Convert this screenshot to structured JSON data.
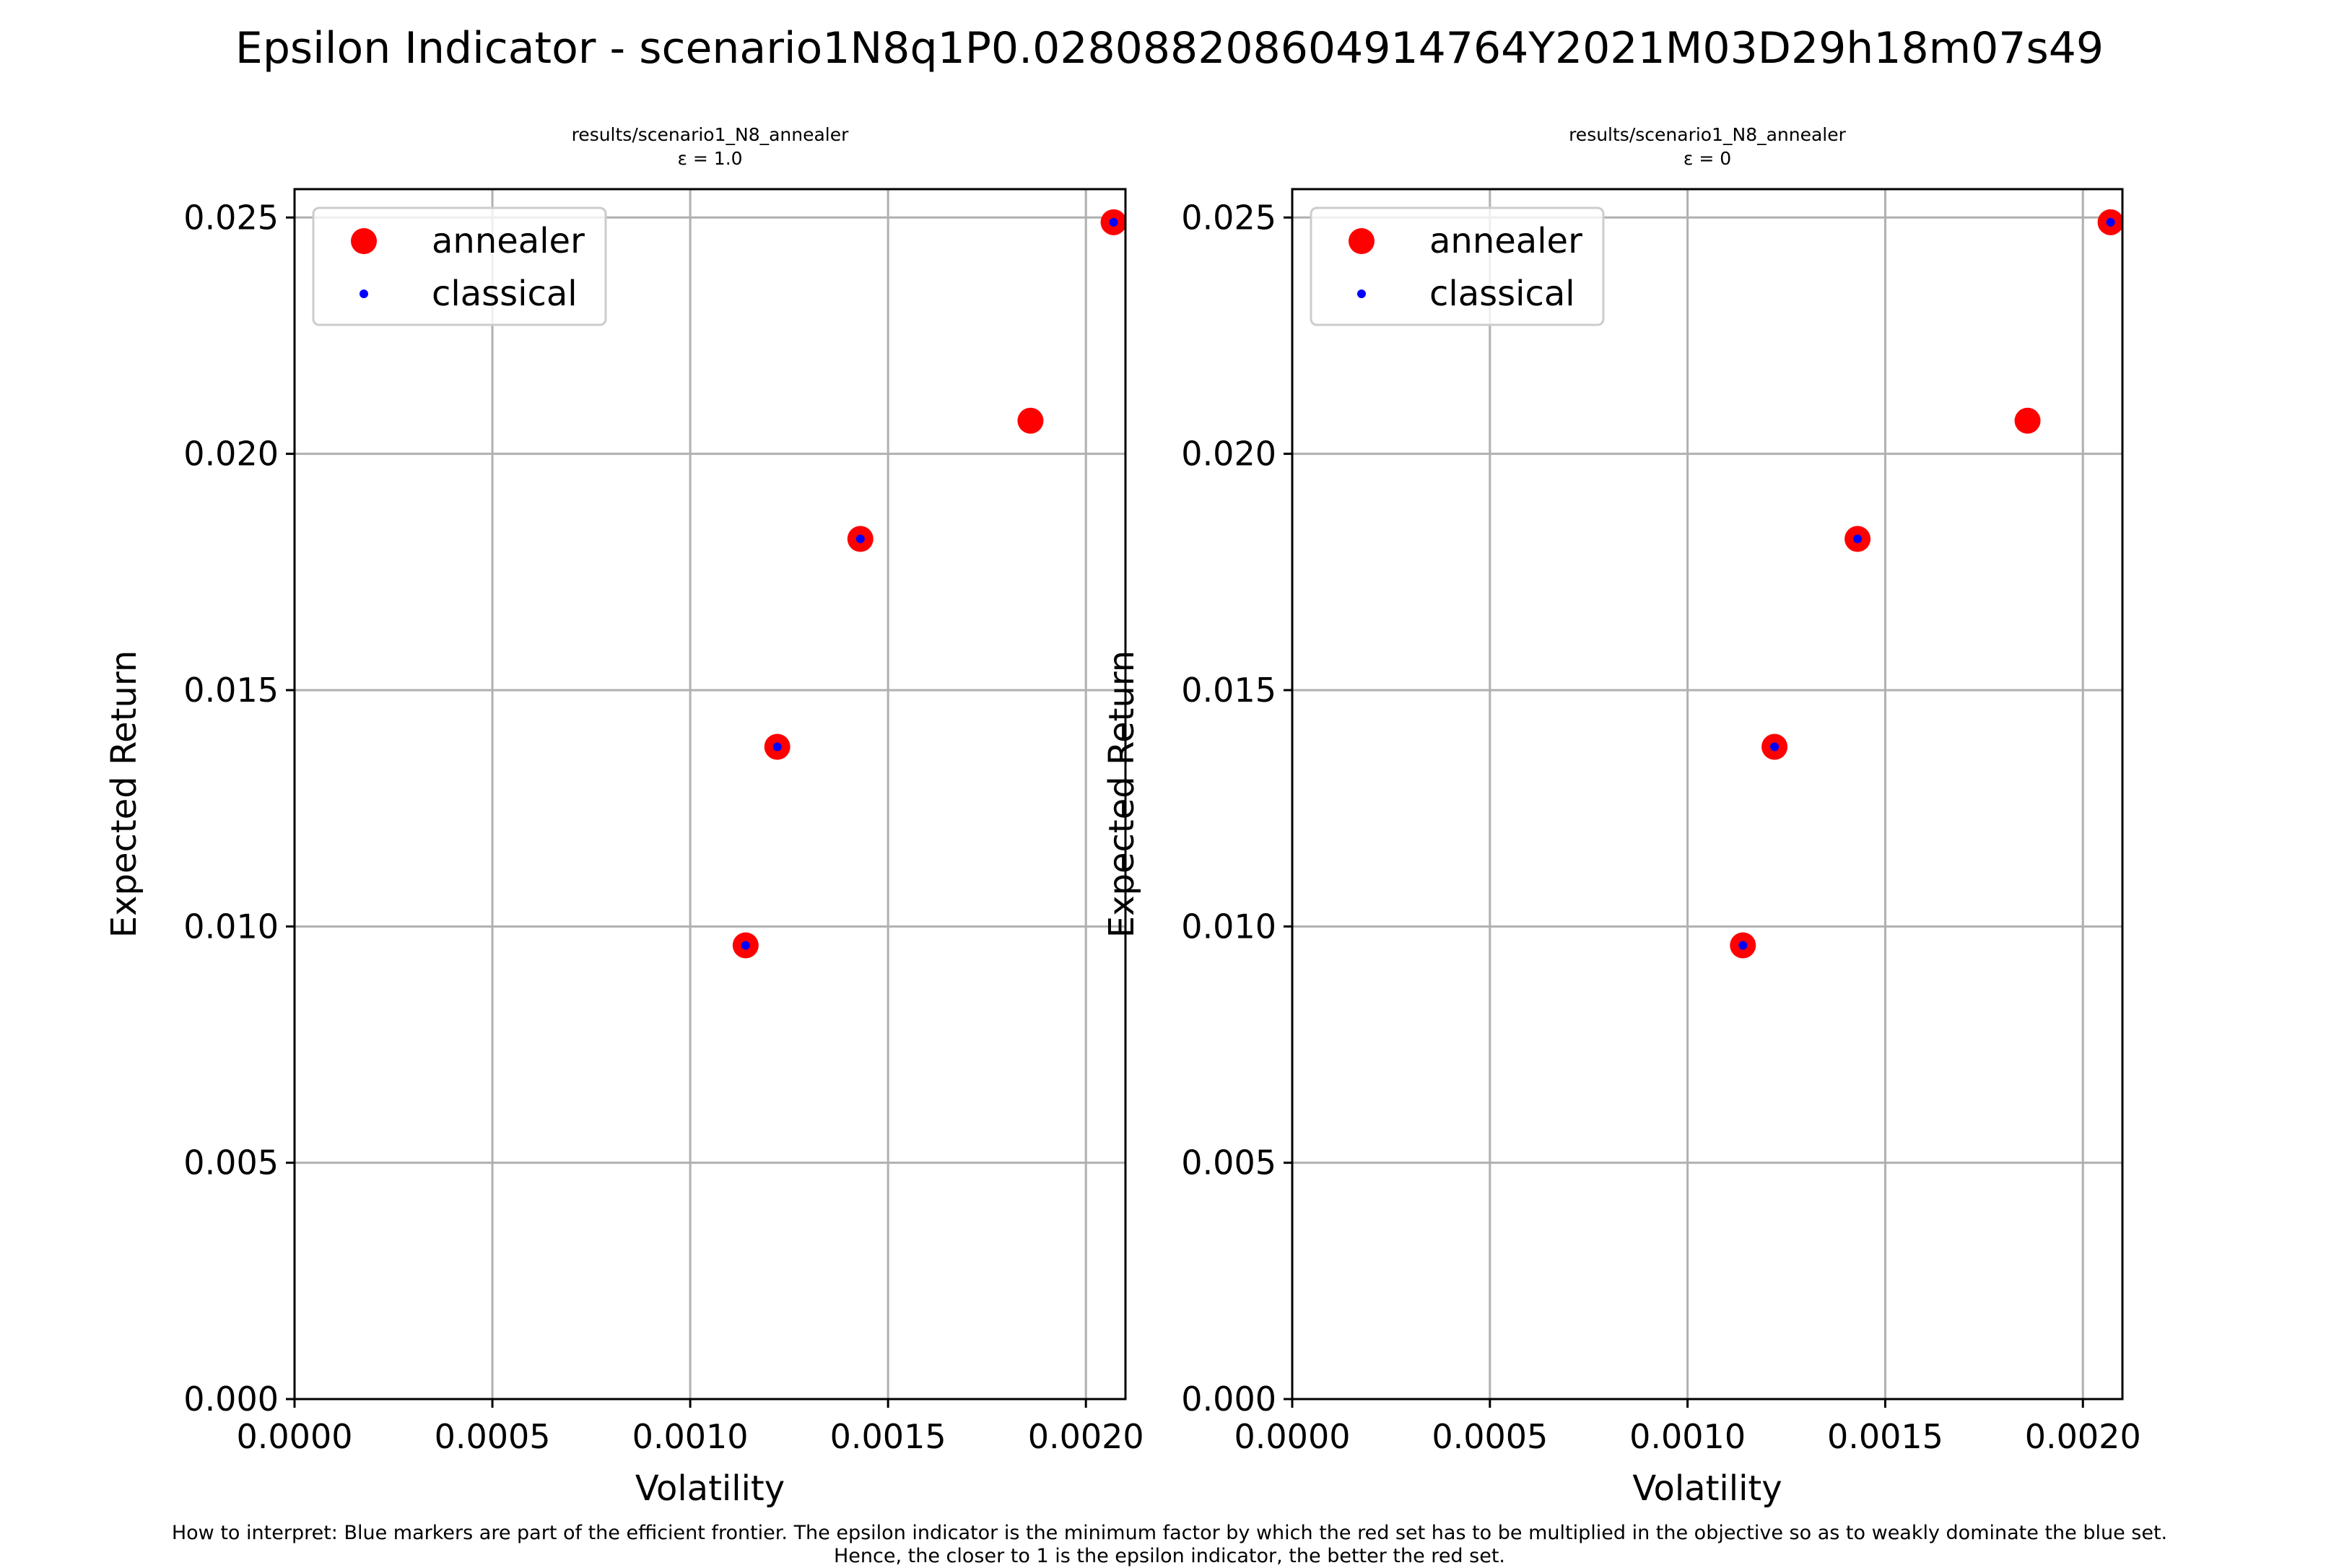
{
  "suptitle": "Epsilon Indicator - scenario1N8q1P0.028088208604914764Y2021M03D29h18m07s49",
  "footer": {
    "line1": "How to interpret: Blue markers are part of the efficient frontier. The epsilon indicator is the minimum factor by which the red set has to be multiplied in the objective so as to weakly dominate the blue set.",
    "line2": "Hence, the closer to 1 is the epsilon indicator, the better the red set."
  },
  "colors": {
    "annealer": "#ff0000",
    "classical": "#0000ff",
    "grid": "#b0b0b0"
  },
  "chart_data": [
    {
      "type": "scatter",
      "title_line1": "results/scenario1_N8_annealer",
      "title_line2": "ε = 1.0",
      "xlabel": "Volatility",
      "ylabel": "Expected Return",
      "xlim": [
        0.0,
        0.0021
      ],
      "ylim": [
        0.0,
        0.0256
      ],
      "xticks": [
        "0.0000",
        "0.0005",
        "0.0010",
        "0.0015",
        "0.0020"
      ],
      "xtick_values": [
        0.0,
        0.0005,
        0.001,
        0.0015,
        0.002
      ],
      "yticks": [
        "0.000",
        "0.005",
        "0.010",
        "0.015",
        "0.020",
        "0.025"
      ],
      "ytick_values": [
        0.0,
        0.005,
        0.01,
        0.015,
        0.02,
        0.025
      ],
      "grid": true,
      "legend": "upper left",
      "series": [
        {
          "name": "annealer",
          "color": "#ff0000",
          "x": [
            0.00114,
            0.00122,
            0.00143,
            0.00186,
            0.00207
          ],
          "y": [
            0.0096,
            0.0138,
            0.0182,
            0.0207,
            0.0249
          ]
        },
        {
          "name": "classical",
          "color": "#0000ff",
          "x": [
            0.00114,
            0.00122,
            0.00143,
            0.00207
          ],
          "y": [
            0.0096,
            0.0138,
            0.0182,
            0.0249
          ]
        }
      ]
    },
    {
      "type": "scatter",
      "title_line1": "results/scenario1_N8_annealer",
      "title_line2": "ε = 0",
      "xlabel": "Volatility",
      "ylabel": "Expected Return",
      "xlim": [
        0.0,
        0.0021
      ],
      "ylim": [
        0.0,
        0.0256
      ],
      "xticks": [
        "0.0000",
        "0.0005",
        "0.0010",
        "0.0015",
        "0.0020"
      ],
      "xtick_values": [
        0.0,
        0.0005,
        0.001,
        0.0015,
        0.002
      ],
      "yticks": [
        "0.000",
        "0.005",
        "0.010",
        "0.015",
        "0.020",
        "0.025"
      ],
      "ytick_values": [
        0.0,
        0.005,
        0.01,
        0.015,
        0.02,
        0.025
      ],
      "grid": true,
      "legend": "upper left",
      "series": [
        {
          "name": "annealer",
          "color": "#ff0000",
          "x": [
            0.00114,
            0.00122,
            0.00143,
            0.00186,
            0.00207
          ],
          "y": [
            0.0096,
            0.0138,
            0.0182,
            0.0207,
            0.0249
          ]
        },
        {
          "name": "classical",
          "color": "#0000ff",
          "x": [
            0.00114,
            0.00122,
            0.00143,
            0.00207
          ],
          "y": [
            0.0096,
            0.0138,
            0.0182,
            0.0249
          ]
        }
      ]
    }
  ]
}
